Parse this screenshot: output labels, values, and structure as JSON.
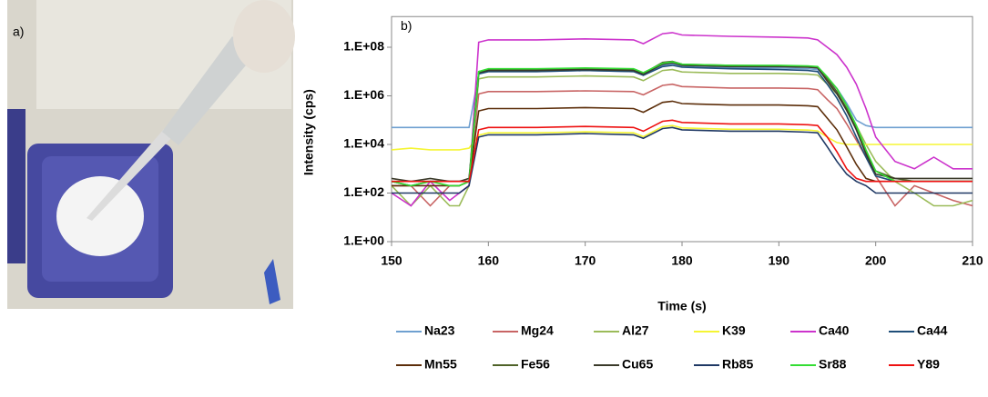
{
  "panel_a": {
    "label": "a)"
  },
  "chart_data": {
    "type": "line",
    "annotation": "b)",
    "xlabel": "Time (s)",
    "ylabel": "Intensity (cps)",
    "log_y": true,
    "grid": false,
    "legend": "bottom",
    "xlim": [
      150,
      210
    ],
    "xticks": [
      150,
      160,
      170,
      180,
      190,
      200,
      210
    ],
    "ylim": [
      1,
      1000000000.0
    ],
    "yticks": [
      {
        "value": 1,
        "label": "1.E+00"
      },
      {
        "value": 100,
        "label": "1.E+02"
      },
      {
        "value": 10000,
        "label": "1.E+04"
      },
      {
        "value": 1000000,
        "label": "1.E+06"
      },
      {
        "value": 100000000,
        "label": "1.E+08"
      }
    ],
    "x": [
      150,
      152,
      154,
      156,
      157,
      158,
      159,
      160,
      165,
      170,
      175,
      176,
      178,
      179,
      180,
      185,
      190,
      193,
      194,
      195,
      196,
      197,
      198,
      199,
      200,
      202,
      204,
      206,
      208,
      210
    ],
    "series": [
      {
        "name": "Na23",
        "color": "#6fa0d0",
        "values": [
          50000.0,
          50000.0,
          50000.0,
          50000.0,
          50000.0,
          50000.0,
          8000000.0,
          10000000.0,
          10000000.0,
          11000000.0,
          10000000.0,
          7000000.0,
          18000000.0,
          20000000.0,
          16000000.0,
          14000000.0,
          14000000.0,
          13000000.0,
          12000000.0,
          5000000.0,
          2000000.0,
          500000.0,
          100000.0,
          60000.0,
          50000.0,
          50000.0,
          50000.0,
          50000.0,
          50000.0,
          50000.0
        ]
      },
      {
        "name": "Mg24",
        "color": "#c86464",
        "values": [
          200,
          200,
          30,
          200,
          200,
          300,
          1200000.0,
          1500000.0,
          1500000.0,
          1600000.0,
          1500000.0,
          1100000.0,
          2700000.0,
          3000000.0,
          2400000.0,
          2100000.0,
          2100000.0,
          2000000.0,
          1800000.0,
          700000.0,
          300000.0,
          70000.0,
          15000.0,
          3000.0,
          500,
          30,
          200,
          100,
          50,
          30
        ]
      },
      {
        "name": "Al27",
        "color": "#9bbb59",
        "values": [
          200,
          30,
          200,
          30,
          30,
          200,
          5000000.0,
          6000000.0,
          6000000.0,
          6600000.0,
          6000000.0,
          4200000.0,
          11000000.0,
          12000000.0,
          9600000.0,
          8400000.0,
          8400000.0,
          7800000.0,
          7200000.0,
          3000000.0,
          1200000.0,
          300000.0,
          60000.0,
          10000.0,
          2000.0,
          300,
          100,
          30,
          30,
          50
        ]
      },
      {
        "name": "K39",
        "color": "#f5f533",
        "values": [
          6000.0,
          7000.0,
          6000.0,
          6000.0,
          6000.0,
          7000.0,
          24000.0,
          30000.0,
          30000.0,
          33000.0,
          30000.0,
          21000.0,
          54000.0,
          60000.0,
          48000.0,
          42000.0,
          42000.0,
          39000.0,
          36000.0,
          20000.0,
          12000.0,
          10000.0,
          10000.0,
          10000.0,
          10000.0,
          10000.0,
          10000.0,
          10000.0,
          10000.0,
          10000.0
        ]
      },
      {
        "name": "Ca40",
        "color": "#cc33cc",
        "values": [
          100,
          30,
          300,
          50,
          100,
          200,
          160000000.0,
          200000000.0,
          200000000.0,
          220000000.0,
          200000000.0,
          140000000.0,
          360000000.0,
          400000000.0,
          320000000.0,
          280000000.0,
          260000000.0,
          240000000.0,
          200000000.0,
          100000000.0,
          50000000.0,
          15000000.0,
          3000000.0,
          300000.0,
          20000.0,
          2000.0,
          1000.0,
          3000.0,
          1000.0,
          1000.0
        ]
      },
      {
        "name": "Ca44",
        "color": "#1f4e79",
        "values": [
          300,
          200,
          300,
          300,
          300,
          300,
          8000000.0,
          10000000.0,
          10000000.0,
          11000000.0,
          10000000.0,
          7000000.0,
          16000000.0,
          18000000.0,
          15000000.0,
          13000000.0,
          12000000.0,
          11000000.0,
          10000000.0,
          3000000.0,
          800000.0,
          150000.0,
          20000.0,
          3000.0,
          500,
          300,
          300,
          300,
          300,
          300
        ]
      },
      {
        "name": "Mn55",
        "color": "#5c2e0a",
        "values": [
          200,
          200,
          200,
          200,
          200,
          300,
          240000.0,
          300000.0,
          300000.0,
          330000.0,
          300000.0,
          210000.0,
          540000.0,
          600000.0,
          480000.0,
          420000.0,
          420000.0,
          390000.0,
          360000.0,
          120000.0,
          40000.0,
          8000.0,
          1500.0,
          400,
          300,
          300,
          300,
          300,
          300,
          300
        ]
      },
      {
        "name": "Fe56",
        "color": "#4f6228",
        "values": [
          300,
          300,
          300,
          300,
          300,
          300,
          10000000.0,
          12000000.0,
          12000000.0,
          13000000.0,
          12000000.0,
          8400000.0,
          24000000.0,
          26000000.0,
          20000000.0,
          18000000.0,
          17000000.0,
          16000000.0,
          15000000.0,
          5000000.0,
          1500000.0,
          300000.0,
          50000.0,
          5000.0,
          800,
          400,
          300,
          300,
          300,
          300
        ]
      },
      {
        "name": "Cu65",
        "color": "#3a3a2a",
        "values": [
          400,
          300,
          400,
          300,
          300,
          400,
          9000000.0,
          11000000.0,
          11000000.0,
          12000000.0,
          11000000.0,
          7700000.0,
          20000000.0,
          23000000.0,
          18000000.0,
          16000000.0,
          16000000.0,
          15000000.0,
          14000000.0,
          4000000.0,
          1200000.0,
          250000.0,
          40000.0,
          4000.0,
          600,
          400,
          400,
          400,
          400,
          400
        ]
      },
      {
        "name": "Rb85",
        "color": "#1f3864",
        "values": [
          100,
          100,
          100,
          100,
          100,
          200,
          20000.0,
          25000.0,
          25000.0,
          28000.0,
          25000.0,
          18000.0,
          45000.0,
          50000.0,
          40000.0,
          35000.0,
          35000.0,
          32000.0,
          30000.0,
          8000.0,
          2000.0,
          600,
          300,
          200,
          100,
          100,
          100,
          100,
          100,
          100
        ]
      },
      {
        "name": "Sr88",
        "color": "#33dd33",
        "values": [
          300,
          200,
          300,
          200,
          200,
          300,
          10000000.0,
          13000000.0,
          13000000.0,
          14000000.0,
          13000000.0,
          9000000.0,
          22000000.0,
          25000000.0,
          20000000.0,
          18000000.0,
          18000000.0,
          17000000.0,
          16000000.0,
          6000000.0,
          2000000.0,
          400000.0,
          60000.0,
          6000.0,
          800,
          300,
          300,
          300,
          300,
          300
        ]
      },
      {
        "name": "Y89",
        "color": "#ee1111",
        "values": [
          300,
          300,
          300,
          300,
          300,
          300,
          40000.0,
          50000.0,
          50000.0,
          55000.0,
          50000.0,
          35000.0,
          90000.0,
          100000.0,
          80000.0,
          70000.0,
          70000.0,
          65000.0,
          60000.0,
          20000.0,
          5000.0,
          1000.0,
          400,
          300,
          300,
          300,
          300,
          300,
          300,
          300
        ]
      }
    ]
  }
}
